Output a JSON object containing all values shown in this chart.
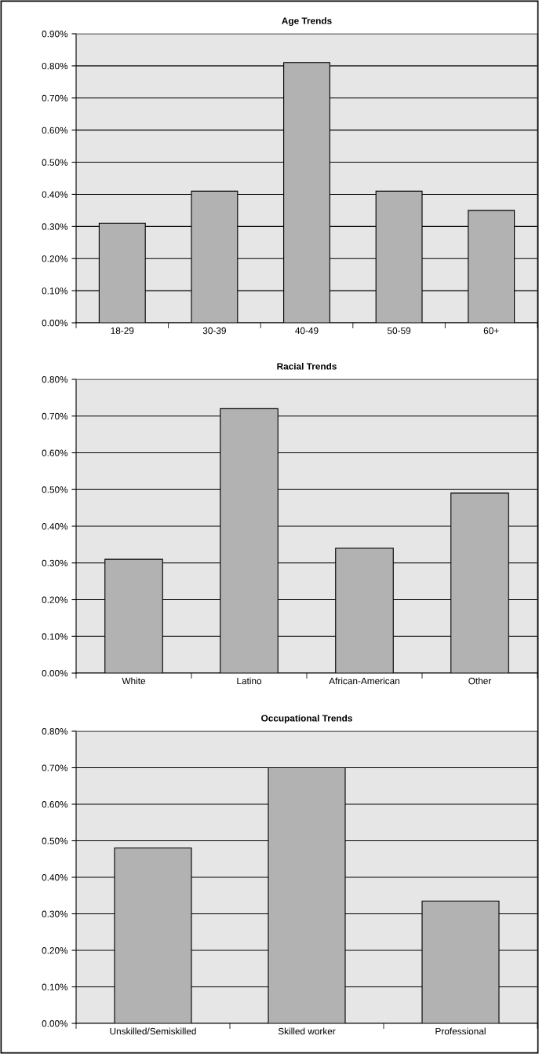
{
  "chart_data": [
    {
      "type": "bar",
      "title": "Age Trends",
      "categories": [
        "18-29",
        "30-39",
        "40-49",
        "50-59",
        "60+"
      ],
      "values": [
        0.31,
        0.41,
        0.81,
        0.41,
        0.35
      ],
      "color": "#b2b2b2",
      "ylim": [
        0,
        0.9
      ],
      "yticks": [
        {
          "value": 0,
          "label": "0.00%"
        },
        {
          "value": 0.1,
          "label": "0.10%"
        },
        {
          "value": 0.2,
          "label": "0.20%"
        },
        {
          "value": 0.3,
          "label": "0.30%"
        },
        {
          "value": 0.4,
          "label": "0.40%"
        },
        {
          "value": 0.5,
          "label": "0.50%"
        },
        {
          "value": 0.6,
          "label": "0.60%"
        },
        {
          "value": 0.7,
          "label": "0.70%"
        },
        {
          "value": 0.8,
          "label": "0.80%"
        },
        {
          "value": 0.9,
          "label": "0.90%"
        }
      ],
      "grid": "y"
    },
    {
      "type": "bar",
      "title": "Racial Trends",
      "categories": [
        "White",
        "Latino",
        "African-American",
        "Other"
      ],
      "values": [
        0.31,
        0.72,
        0.34,
        0.49
      ],
      "color": "#b2b2b2",
      "ylim": [
        0,
        0.8
      ],
      "yticks": [
        {
          "value": 0,
          "label": "0.00%"
        },
        {
          "value": 0.1,
          "label": "0.10%"
        },
        {
          "value": 0.2,
          "label": "0.20%"
        },
        {
          "value": 0.3,
          "label": "0.30%"
        },
        {
          "value": 0.4,
          "label": "0.40%"
        },
        {
          "value": 0.5,
          "label": "0.50%"
        },
        {
          "value": 0.6,
          "label": "0.60%"
        },
        {
          "value": 0.7,
          "label": "0.70%"
        },
        {
          "value": 0.8,
          "label": "0.80%"
        }
      ],
      "grid": "y"
    },
    {
      "type": "bar",
      "title": "Occupational Trends",
      "categories": [
        "Unskilled/Semiskilled",
        "Skilled worker",
        "Professional"
      ],
      "values": [
        0.48,
        0.7,
        0.335
      ],
      "color": "#b2b2b2",
      "ylim": [
        0,
        0.8
      ],
      "yticks": [
        {
          "value": 0,
          "label": "0.00%"
        },
        {
          "value": 0.1,
          "label": "0.10%"
        },
        {
          "value": 0.2,
          "label": "0.20%"
        },
        {
          "value": 0.3,
          "label": "0.30%"
        },
        {
          "value": 0.4,
          "label": "0.40%"
        },
        {
          "value": 0.5,
          "label": "0.50%"
        },
        {
          "value": 0.6,
          "label": "0.60%"
        },
        {
          "value": 0.7,
          "label": "0.70%"
        },
        {
          "value": 0.8,
          "label": "0.80%"
        }
      ],
      "grid": "y"
    }
  ]
}
